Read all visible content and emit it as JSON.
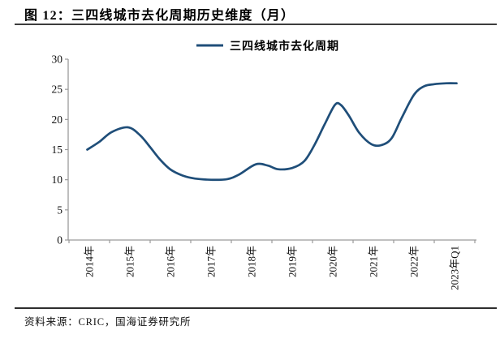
{
  "figure": {
    "title": "图 12：三四线城市去化周期历史维度（月）",
    "source": "资料来源：CRIC，国海证券研究所"
  },
  "chart_data": {
    "type": "line",
    "title": "图 12：三四线城市去化周期历史维度（月）",
    "legend": [
      {
        "label": "三四线城市去化周期",
        "position": "top-center"
      }
    ],
    "x_categories": [
      "2014年",
      "2015年",
      "2016年",
      "2017年",
      "2018年",
      "2019年",
      "2020年",
      "2021年",
      "2022年",
      "2023年Q1"
    ],
    "x_label_rotation": -90,
    "ylim": [
      0,
      30
    ],
    "yticks": [
      0,
      5,
      10,
      15,
      20,
      25,
      30
    ],
    "ylabel": "",
    "xlabel": "",
    "grid": false,
    "series": [
      {
        "name": "三四线城市去化周期",
        "unit": "月",
        "color": "#1F4E79",
        "x_unit": "category-axis position: 0 = start of 2014, 1 per year tick, 10 = right edge; year centers at i+0.5",
        "points": [
          [
            0.45,
            15.0
          ],
          [
            0.75,
            16.3
          ],
          [
            1.05,
            17.9
          ],
          [
            1.45,
            18.7
          ],
          [
            1.75,
            17.4
          ],
          [
            2.0,
            15.4
          ],
          [
            2.25,
            13.3
          ],
          [
            2.5,
            11.7
          ],
          [
            2.8,
            10.7
          ],
          [
            3.1,
            10.2
          ],
          [
            3.5,
            10.0
          ],
          [
            3.9,
            10.1
          ],
          [
            4.2,
            10.9
          ],
          [
            4.6,
            12.55
          ],
          [
            4.9,
            12.35
          ],
          [
            5.15,
            11.75
          ],
          [
            5.5,
            11.95
          ],
          [
            5.8,
            13.1
          ],
          [
            6.05,
            15.8
          ],
          [
            6.3,
            19.2
          ],
          [
            6.55,
            22.4
          ],
          [
            6.7,
            22.4
          ],
          [
            6.9,
            20.6
          ],
          [
            7.15,
            17.8
          ],
          [
            7.45,
            15.9
          ],
          [
            7.7,
            15.75
          ],
          [
            7.95,
            16.9
          ],
          [
            8.2,
            20.3
          ],
          [
            8.5,
            24.1
          ],
          [
            8.75,
            25.5
          ],
          [
            9.0,
            25.85
          ],
          [
            9.3,
            26.0
          ],
          [
            9.55,
            26.0
          ]
        ],
        "key_values": {
          "2014_start": 15.0,
          "2015_peak": 18.7,
          "2016_2017_trough": 10.0,
          "2018_local_peak": 12.5,
          "2019_local_dip": 11.8,
          "2020_peak": 22.4,
          "2021_trough": 15.8,
          "2023Q1_end": 26.0
        }
      }
    ]
  },
  "style": {
    "line_color": "#1F4E79",
    "axis_color": "#9a9a9a",
    "tick_label_color": "#111111",
    "rule_color": "#3d3d3d",
    "background": "#ffffff"
  }
}
